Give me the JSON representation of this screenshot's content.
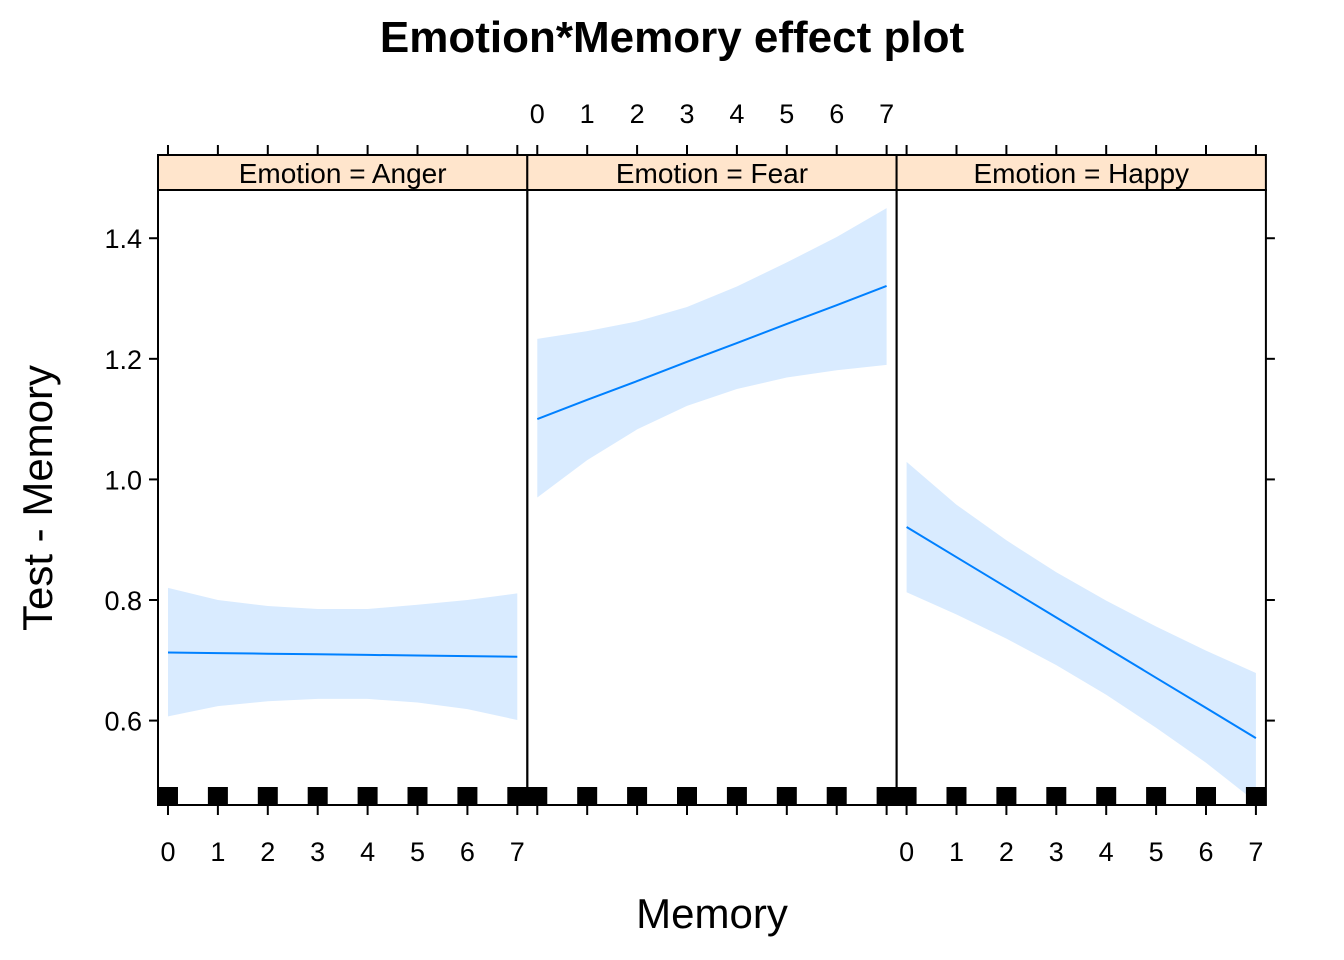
{
  "chart_data": {
    "type": "line",
    "title": "Emotion*Memory effect plot",
    "xlabel": "Memory",
    "ylabel": "Test - Memory",
    "xlim": [
      -0.2,
      7.2
    ],
    "ylim": [
      0.46,
      1.48
    ],
    "x_ticks": [
      0,
      1,
      2,
      3,
      4,
      5,
      6,
      7
    ],
    "y_ticks": [
      0.6,
      0.8,
      1.0,
      1.2,
      1.4
    ],
    "y_tick_labels": [
      "0.6",
      "0.8",
      "1.0",
      "1.2",
      "1.4"
    ],
    "grid": false,
    "rug_x": [
      0,
      1,
      2,
      3,
      4,
      5,
      6,
      7
    ],
    "colors": {
      "line": "#0080ff",
      "band": "#d9ebff",
      "strip": "#ffe5cc",
      "rug": "#000000"
    },
    "panels": [
      {
        "strip_label": "Emotion = Anger",
        "x": [
          0,
          1,
          2,
          3,
          4,
          5,
          6,
          7
        ],
        "fit": [
          0.713,
          0.712,
          0.711,
          0.71,
          0.709,
          0.708,
          0.707,
          0.706
        ],
        "lower": [
          0.607,
          0.624,
          0.632,
          0.636,
          0.636,
          0.63,
          0.619,
          0.601
        ],
        "upper": [
          0.82,
          0.8,
          0.79,
          0.785,
          0.785,
          0.792,
          0.8,
          0.811
        ]
      },
      {
        "strip_label": "Emotion = Fear",
        "x": [
          0,
          1,
          2,
          3,
          4,
          5,
          6,
          7
        ],
        "fit": [
          1.1,
          1.132,
          1.163,
          1.195,
          1.226,
          1.258,
          1.289,
          1.321
        ],
        "lower": [
          0.97,
          1.032,
          1.083,
          1.122,
          1.15,
          1.169,
          1.181,
          1.19
        ],
        "upper": [
          1.233,
          1.246,
          1.262,
          1.286,
          1.32,
          1.36,
          1.402,
          1.45
        ]
      },
      {
        "strip_label": "Emotion = Happy",
        "x": [
          0,
          1,
          2,
          3,
          4,
          5,
          6,
          7
        ],
        "fit": [
          0.921,
          0.871,
          0.821,
          0.771,
          0.721,
          0.671,
          0.621,
          0.571
        ],
        "lower": [
          0.813,
          0.776,
          0.736,
          0.692,
          0.643,
          0.588,
          0.53,
          0.465
        ],
        "upper": [
          1.029,
          0.958,
          0.899,
          0.846,
          0.799,
          0.756,
          0.716,
          0.679
        ]
      }
    ]
  }
}
